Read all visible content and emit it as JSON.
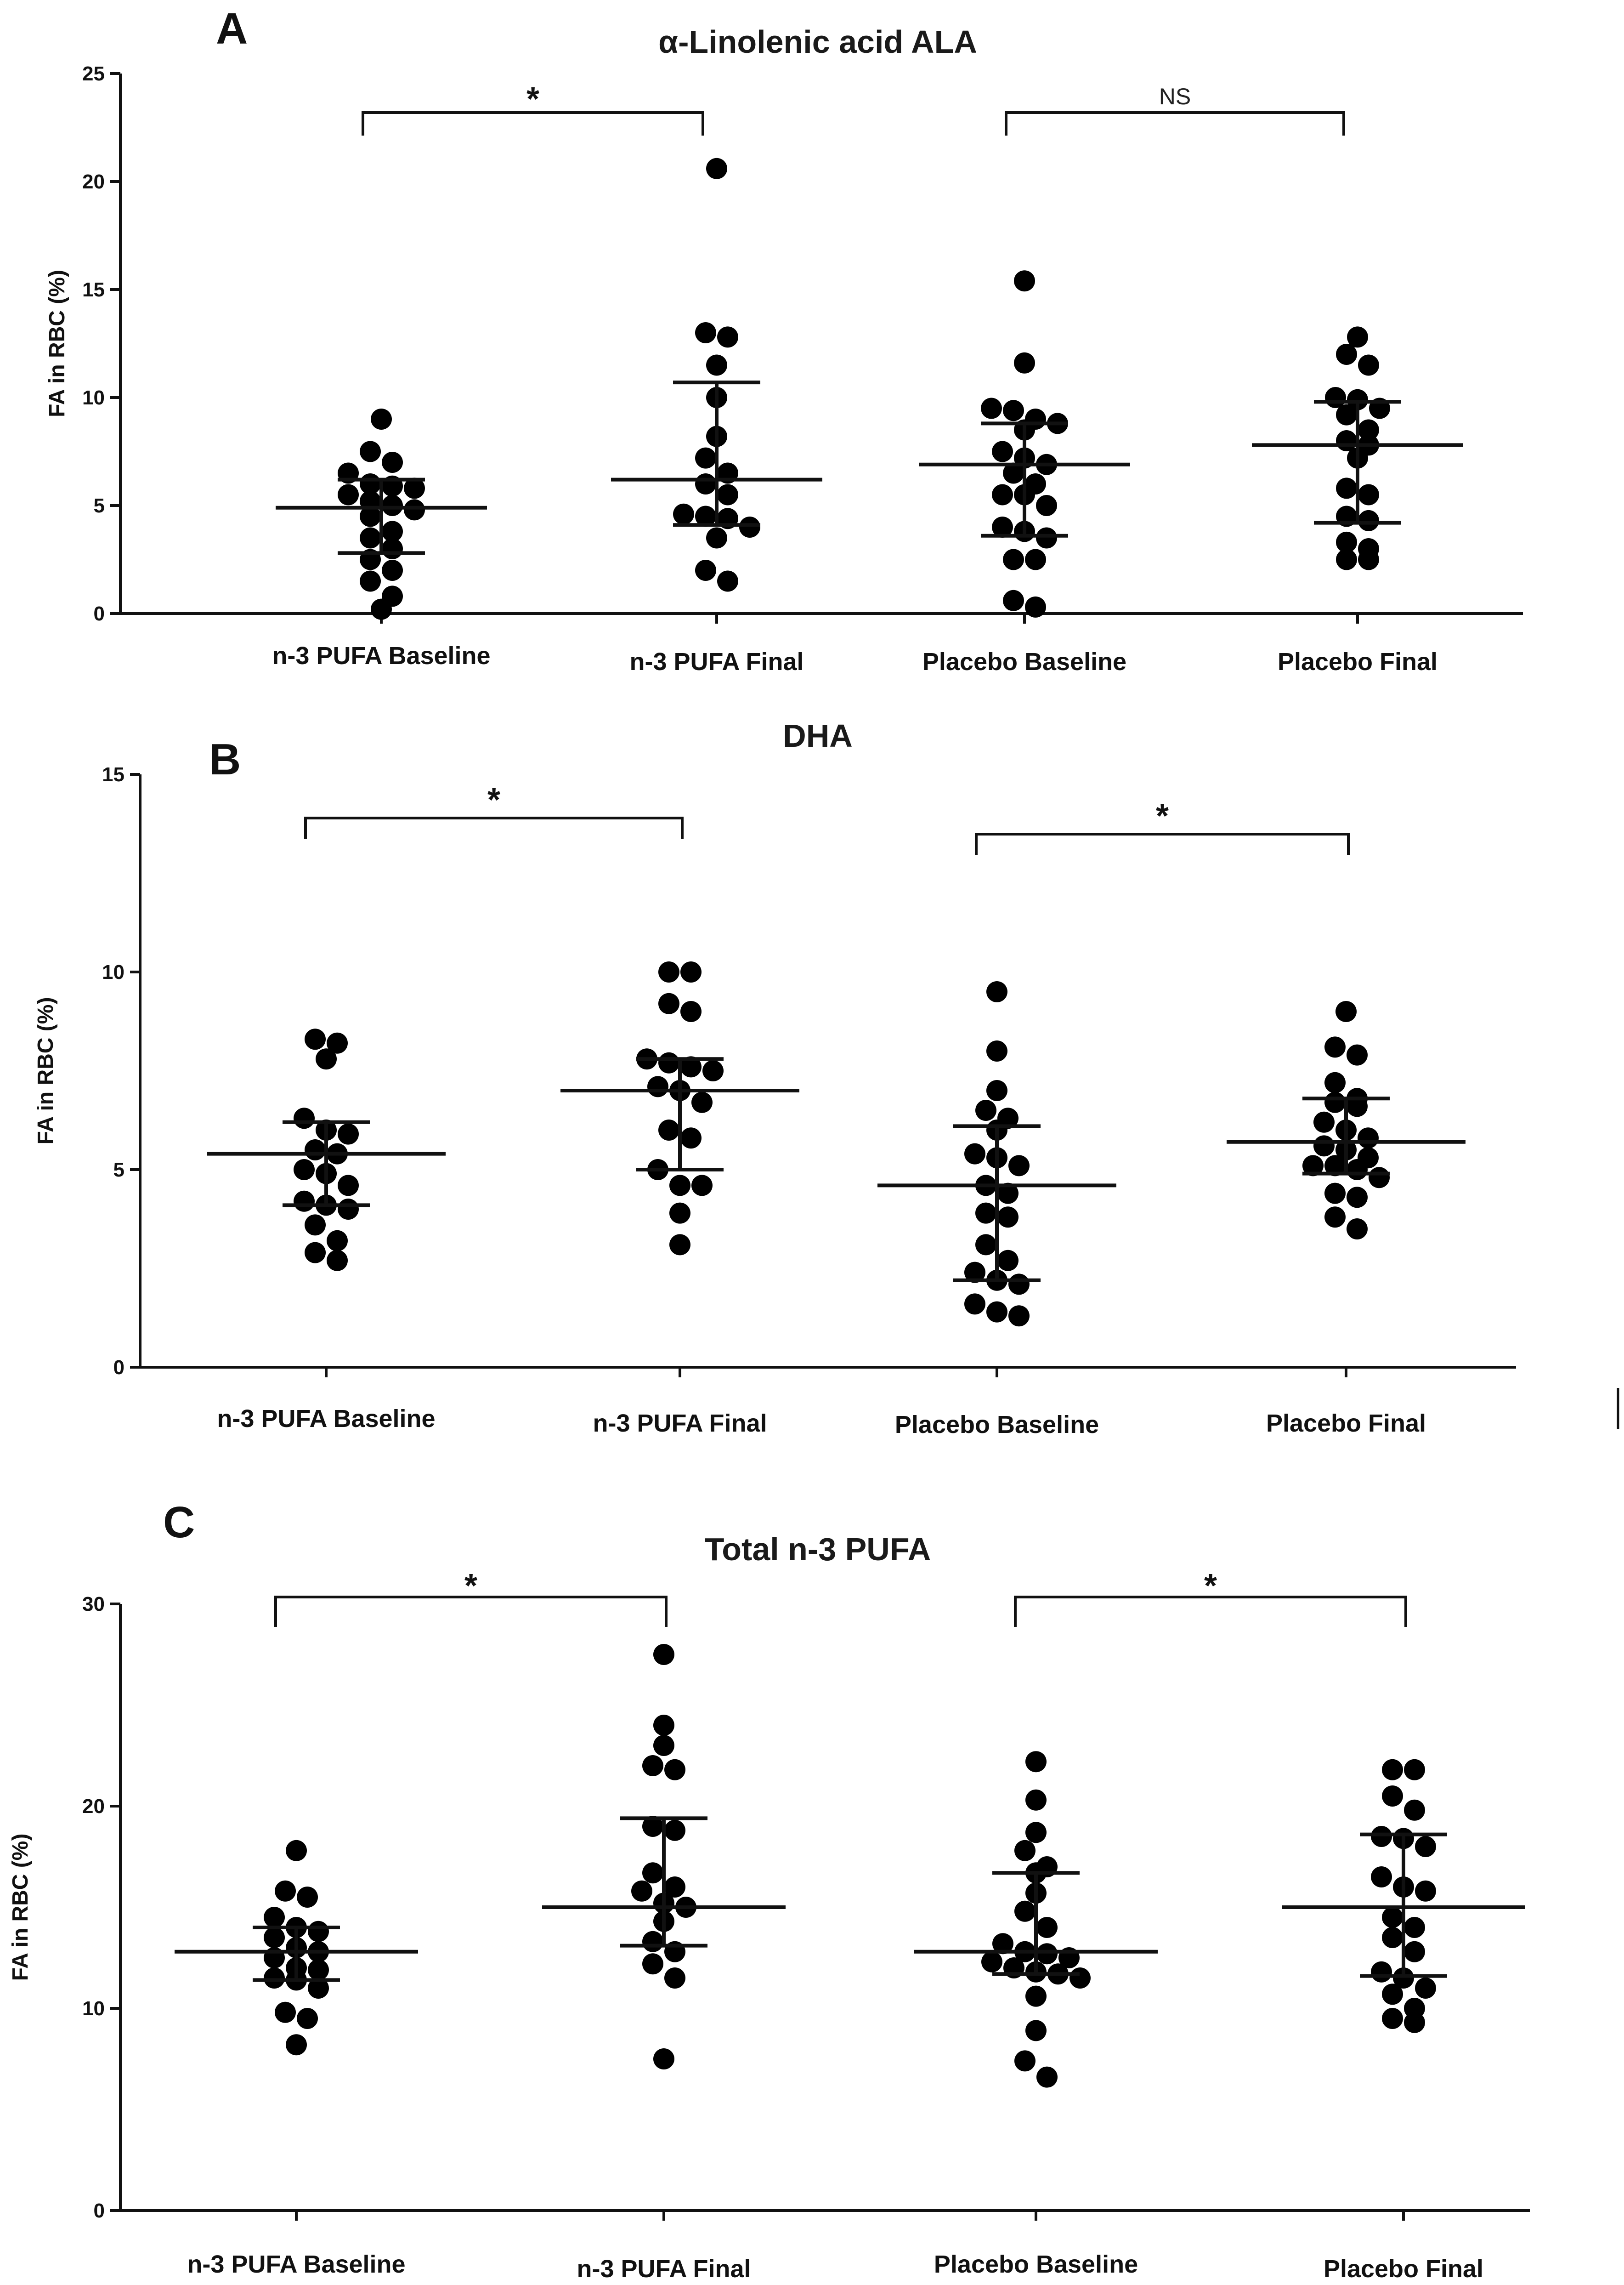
{
  "chart_data": [
    {
      "panel": "A",
      "type": "scatter",
      "title": "α-Linolenic acid ALA",
      "ylabel": "FA in RBC (%)",
      "ylim": [
        0,
        25
      ],
      "yticks": [
        0,
        5,
        10,
        15,
        20,
        25
      ],
      "categories": [
        "n-3 PUFA Baseline",
        "n-3 PUFA Final",
        "Placebo Baseline",
        "Placebo Final"
      ],
      "groups": [
        {
          "name": "n-3 PUFA Baseline",
          "median": 4.9,
          "q1": 2.8,
          "q3": 6.2,
          "values": [
            9.0,
            7.5,
            7.0,
            6.5,
            6.0,
            5.8,
            5.9,
            5.5,
            5.0,
            5.2,
            4.8,
            4.5,
            3.8,
            3.5,
            3.0,
            2.5,
            2.0,
            1.5,
            0.8,
            0.2
          ]
        },
        {
          "name": "n-3 PUFA Final",
          "median": 6.2,
          "q1": 4.1,
          "q3": 10.7,
          "values": [
            20.6,
            13.0,
            12.8,
            11.5,
            10.0,
            8.2,
            7.2,
            6.5,
            6.0,
            5.5,
            4.6,
            4.4,
            4.5,
            4.0,
            3.5,
            2.0,
            1.5
          ]
        },
        {
          "name": "Placebo Baseline",
          "median": 6.9,
          "q1": 3.6,
          "q3": 8.8,
          "values": [
            15.4,
            11.6,
            9.5,
            9.4,
            9.0,
            8.8,
            8.5,
            7.5,
            7.2,
            6.9,
            6.5,
            6.0,
            5.5,
            5.5,
            5.0,
            4.0,
            3.8,
            3.5,
            2.5,
            2.5,
            0.6,
            0.3
          ]
        },
        {
          "name": "Placebo Final",
          "median": 7.8,
          "q1": 4.2,
          "q3": 9.8,
          "values": [
            12.8,
            12.0,
            11.5,
            10.0,
            9.9,
            9.5,
            9.2,
            8.5,
            8.0,
            7.8,
            7.2,
            5.8,
            5.5,
            4.5,
            4.3,
            3.3,
            3.0,
            2.5,
            2.5
          ]
        }
      ],
      "comparisons": [
        {
          "groups": [
            0,
            1
          ],
          "label": "*"
        },
        {
          "groups": [
            2,
            3
          ],
          "label": "NS"
        }
      ]
    },
    {
      "panel": "B",
      "type": "scatter",
      "title": "DHA",
      "ylabel": "FA in RBC (%)",
      "ylim": [
        0,
        15
      ],
      "yticks": [
        0,
        5,
        10,
        15
      ],
      "categories": [
        "n-3 PUFA Baseline",
        "n-3 PUFA Final",
        "Placebo Baseline",
        "Placebo Final"
      ],
      "groups": [
        {
          "name": "n-3 PUFA Baseline",
          "median": 5.4,
          "q1": 4.1,
          "q3": 6.2,
          "values": [
            8.3,
            8.2,
            7.8,
            6.3,
            6.0,
            5.9,
            5.5,
            5.4,
            5.0,
            4.9,
            4.6,
            4.2,
            4.1,
            4.0,
            3.6,
            3.2,
            2.9,
            2.7
          ]
        },
        {
          "name": "n-3 PUFA Final",
          "median": 7.0,
          "q1": 5.0,
          "q3": 7.8,
          "values": [
            10.0,
            10.0,
            9.2,
            9.0,
            7.8,
            7.7,
            7.6,
            7.5,
            7.1,
            7.0,
            6.7,
            6.0,
            5.8,
            5.0,
            4.6,
            4.6,
            3.9,
            3.1
          ]
        },
        {
          "name": "Placebo Baseline",
          "median": 4.6,
          "q1": 2.2,
          "q3": 6.1,
          "values": [
            9.5,
            8.0,
            7.0,
            6.5,
            6.3,
            6.0,
            5.4,
            5.3,
            5.1,
            4.6,
            4.4,
            3.9,
            3.8,
            3.1,
            2.7,
            2.4,
            2.2,
            2.1,
            1.6,
            1.4,
            1.3
          ]
        },
        {
          "name": "Placebo Final",
          "median": 5.7,
          "q1": 4.9,
          "q3": 6.8,
          "values": [
            9.0,
            8.1,
            7.9,
            7.2,
            6.8,
            6.7,
            6.6,
            6.2,
            6.0,
            5.8,
            5.6,
            5.5,
            5.3,
            5.1,
            5.1,
            5.0,
            4.8,
            4.4,
            4.3,
            3.8,
            3.5
          ]
        }
      ],
      "comparisons": [
        {
          "groups": [
            0,
            1
          ],
          "label": "*"
        },
        {
          "groups": [
            2,
            3
          ],
          "label": "*"
        }
      ]
    },
    {
      "panel": "C",
      "type": "scatter",
      "title": "Total n-3 PUFA",
      "ylabel": "FA in RBC (%)",
      "ylim": [
        0,
        30
      ],
      "yticks": [
        0,
        10,
        20,
        30
      ],
      "categories": [
        "n-3 PUFA Baseline",
        "n-3 PUFA Final",
        "Placebo Baseline",
        "Placebo Final"
      ],
      "groups": [
        {
          "name": "n-3 PUFA Baseline",
          "median": 12.8,
          "q1": 11.4,
          "q3": 14.0,
          "values": [
            17.8,
            15.8,
            15.5,
            14.5,
            14.0,
            13.8,
            13.5,
            13.0,
            12.8,
            12.5,
            12.0,
            11.9,
            11.5,
            11.4,
            11.0,
            9.8,
            9.5,
            8.2
          ]
        },
        {
          "name": "n-3 PUFA Final",
          "median": 15.0,
          "q1": 13.1,
          "q3": 19.4,
          "values": [
            27.5,
            24.0,
            23.0,
            22.0,
            21.8,
            19.0,
            18.8,
            16.7,
            16.0,
            15.8,
            15.2,
            15.0,
            14.3,
            13.3,
            12.8,
            12.2,
            11.5,
            7.5
          ]
        },
        {
          "name": "Placebo Baseline",
          "median": 12.8,
          "q1": 11.7,
          "q3": 16.7,
          "values": [
            22.2,
            20.3,
            18.7,
            17.8,
            17.0,
            16.7,
            15.7,
            14.8,
            14.0,
            13.2,
            12.8,
            12.7,
            12.5,
            12.3,
            12.0,
            11.8,
            11.7,
            11.5,
            10.6,
            8.9,
            7.4,
            6.6
          ]
        },
        {
          "name": "Placebo Final",
          "median": 15.0,
          "q1": 11.6,
          "q3": 18.6,
          "values": [
            21.8,
            21.8,
            20.5,
            19.8,
            18.5,
            18.4,
            18.0,
            16.5,
            16.0,
            15.8,
            14.5,
            14.0,
            13.5,
            12.8,
            11.8,
            11.5,
            11.0,
            10.7,
            10.0,
            9.5,
            9.3
          ]
        }
      ],
      "comparisons": [
        {
          "groups": [
            0,
            1
          ],
          "label": "*"
        },
        {
          "groups": [
            2,
            3
          ],
          "label": "*"
        }
      ]
    }
  ]
}
